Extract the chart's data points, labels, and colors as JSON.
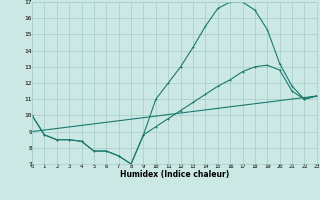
{
  "xlabel": "Humidex (Indice chaleur)",
  "bg_color": "#cce8e4",
  "grid_color": "#aacfcb",
  "line_color": "#1a7a6e",
  "xlim": [
    0,
    23
  ],
  "ylim": [
    7,
    17
  ],
  "xticks": [
    0,
    1,
    2,
    3,
    4,
    5,
    6,
    7,
    8,
    9,
    10,
    11,
    12,
    13,
    14,
    15,
    16,
    17,
    18,
    19,
    20,
    21,
    22,
    23
  ],
  "yticks": [
    7,
    8,
    9,
    10,
    11,
    12,
    13,
    14,
    15,
    16,
    17
  ],
  "curve1_x": [
    0,
    1,
    2,
    3,
    4,
    5,
    6,
    7,
    8,
    9,
    10,
    11,
    12,
    13,
    14,
    15,
    16,
    17,
    18,
    19,
    20,
    21,
    22,
    23
  ],
  "curve1_y": [
    10.0,
    8.8,
    8.5,
    8.5,
    8.4,
    7.8,
    7.8,
    7.5,
    7.0,
    8.8,
    11.0,
    12.0,
    13.0,
    14.2,
    15.5,
    16.6,
    17.0,
    17.0,
    16.5,
    15.3,
    13.2,
    11.8,
    11.0,
    11.2
  ],
  "curve2_x": [
    0,
    1,
    2,
    3,
    4,
    5,
    6,
    7,
    8,
    9,
    10,
    11,
    12,
    13,
    14,
    15,
    16,
    17,
    18,
    19,
    20,
    21,
    22,
    23
  ],
  "curve2_y": [
    10.0,
    8.8,
    8.5,
    8.5,
    8.4,
    7.8,
    7.8,
    7.5,
    7.0,
    8.8,
    9.3,
    9.8,
    10.3,
    10.8,
    11.3,
    11.8,
    12.2,
    12.7,
    13.0,
    13.1,
    12.8,
    11.5,
    11.0,
    11.2
  ],
  "line3_x": [
    0,
    23
  ],
  "line3_y": [
    9.0,
    11.2
  ]
}
